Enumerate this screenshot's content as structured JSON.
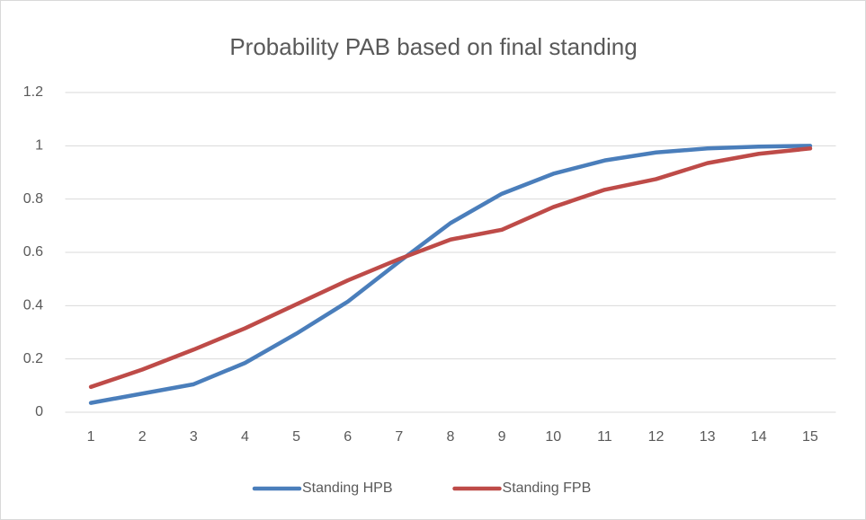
{
  "chart_data": {
    "type": "line",
    "title": "Probability PAB based on final standing",
    "categories": [
      "1",
      "2",
      "3",
      "4",
      "5",
      "6",
      "7",
      "8",
      "9",
      "10",
      "11",
      "12",
      "13",
      "14",
      "15"
    ],
    "series": [
      {
        "name": "Standing HPB",
        "color": "#4a7ebb",
        "values": [
          0.035,
          0.07,
          0.105,
          0.185,
          0.295,
          0.415,
          0.565,
          0.71,
          0.82,
          0.895,
          0.945,
          0.975,
          0.99,
          0.997,
          1.0
        ]
      },
      {
        "name": "Standing FPB",
        "color": "#be4b48",
        "values": [
          0.095,
          0.16,
          0.235,
          0.315,
          0.405,
          0.495,
          0.575,
          0.648,
          0.685,
          0.77,
          0.835,
          0.875,
          0.935,
          0.97,
          0.99
        ]
      }
    ],
    "ylim": [
      0,
      1.2
    ],
    "yticks": [
      0,
      0.2,
      0.4,
      0.6,
      0.8,
      1,
      1.2
    ],
    "grid": true,
    "legend": "bottom"
  }
}
